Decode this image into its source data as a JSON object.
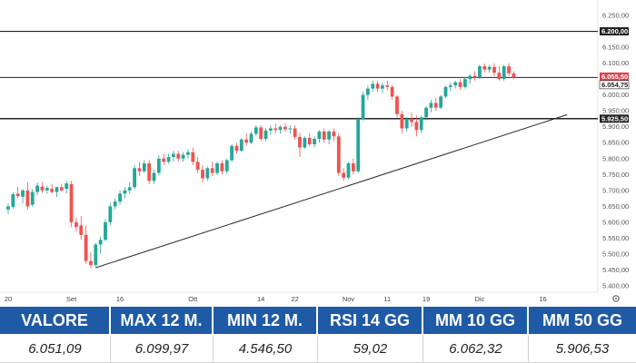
{
  "chart_data": {
    "type": "candlestick",
    "title": "",
    "xlabel": "",
    "ylabel": "",
    "ylim": [
      5380,
      6270
    ],
    "grid": false,
    "y_ticks": [
      "6.250,00",
      "6.200,00",
      "6.150,00",
      "6.100,00",
      "6.050,00",
      "6.000,00",
      "5.950,00",
      "5.900,00",
      "5.850,00",
      "5.800,00",
      "5.750,00",
      "5.700,00",
      "5.650,00",
      "5.600,00",
      "5.550,00",
      "5.500,00",
      "5.450,00",
      "5.400,00"
    ],
    "y_tick_values": [
      6250,
      6200,
      6150,
      6100,
      6050,
      6000,
      5950,
      5900,
      5850,
      5800,
      5750,
      5700,
      5650,
      5600,
      5550,
      5500,
      5450,
      5400
    ],
    "x_ticks": [
      {
        "label": "20",
        "index": 0
      },
      {
        "label": "Set",
        "index": 13
      },
      {
        "label": "16",
        "index": 23
      },
      {
        "label": "Ott",
        "index": 38
      },
      {
        "label": "14",
        "index": 52
      },
      {
        "label": "22",
        "index": 59
      },
      {
        "label": "Nov",
        "index": 70
      },
      {
        "label": "11",
        "index": 78
      },
      {
        "label": "19",
        "index": 86
      },
      {
        "label": "Dic",
        "index": 97
      },
      {
        "label": "16",
        "index": 110
      }
    ],
    "horizontal_levels": [
      {
        "value": 6200,
        "label": "6.200,00",
        "color": "#222222"
      },
      {
        "value": 6055,
        "label": "6.055,50",
        "color": "#222222"
      },
      {
        "value": 5925.5,
        "label": "5.925,50",
        "color": "#222222"
      }
    ],
    "last_price_tags": [
      {
        "label": "6.055,50",
        "color": "#e0414b"
      },
      {
        "label": "6.054,75",
        "color": "#ffffff"
      }
    ],
    "trendline": {
      "from": {
        "index": 18,
        "value": 5457
      },
      "to": {
        "index": 115,
        "value": 5938
      }
    },
    "candles": [
      {
        "o": 5640,
        "h": 5660,
        "l": 5625,
        "c": 5650
      },
      {
        "o": 5648,
        "h": 5695,
        "l": 5642,
        "c": 5688
      },
      {
        "o": 5690,
        "h": 5712,
        "l": 5675,
        "c": 5682
      },
      {
        "o": 5680,
        "h": 5705,
        "l": 5660,
        "c": 5700
      },
      {
        "o": 5700,
        "h": 5725,
        "l": 5640,
        "c": 5650
      },
      {
        "o": 5655,
        "h": 5705,
        "l": 5648,
        "c": 5695
      },
      {
        "o": 5695,
        "h": 5725,
        "l": 5685,
        "c": 5715
      },
      {
        "o": 5712,
        "h": 5725,
        "l": 5692,
        "c": 5700
      },
      {
        "o": 5700,
        "h": 5715,
        "l": 5690,
        "c": 5708
      },
      {
        "o": 5705,
        "h": 5720,
        "l": 5690,
        "c": 5695
      },
      {
        "o": 5695,
        "h": 5712,
        "l": 5680,
        "c": 5710
      },
      {
        "o": 5710,
        "h": 5720,
        "l": 5695,
        "c": 5700
      },
      {
        "o": 5705,
        "h": 5730,
        "l": 5690,
        "c": 5722
      },
      {
        "o": 5720,
        "h": 5730,
        "l": 5585,
        "c": 5600
      },
      {
        "o": 5600,
        "h": 5615,
        "l": 5570,
        "c": 5585
      },
      {
        "o": 5590,
        "h": 5620,
        "l": 5545,
        "c": 5560
      },
      {
        "o": 5560,
        "h": 5590,
        "l": 5470,
        "c": 5478
      },
      {
        "o": 5478,
        "h": 5505,
        "l": 5455,
        "c": 5465
      },
      {
        "o": 5465,
        "h": 5535,
        "l": 5460,
        "c": 5530
      },
      {
        "o": 5530,
        "h": 5555,
        "l": 5500,
        "c": 5545
      },
      {
        "o": 5545,
        "h": 5610,
        "l": 5540,
        "c": 5600
      },
      {
        "o": 5600,
        "h": 5660,
        "l": 5590,
        "c": 5650
      },
      {
        "o": 5650,
        "h": 5675,
        "l": 5640,
        "c": 5665
      },
      {
        "o": 5665,
        "h": 5700,
        "l": 5655,
        "c": 5690
      },
      {
        "o": 5690,
        "h": 5710,
        "l": 5675,
        "c": 5700
      },
      {
        "o": 5700,
        "h": 5725,
        "l": 5690,
        "c": 5710
      },
      {
        "o": 5710,
        "h": 5780,
        "l": 5705,
        "c": 5770
      },
      {
        "o": 5770,
        "h": 5790,
        "l": 5745,
        "c": 5760
      },
      {
        "o": 5760,
        "h": 5795,
        "l": 5755,
        "c": 5785
      },
      {
        "o": 5785,
        "h": 5795,
        "l": 5720,
        "c": 5730
      },
      {
        "o": 5730,
        "h": 5765,
        "l": 5720,
        "c": 5755
      },
      {
        "o": 5755,
        "h": 5810,
        "l": 5748,
        "c": 5800
      },
      {
        "o": 5800,
        "h": 5815,
        "l": 5780,
        "c": 5790
      },
      {
        "o": 5790,
        "h": 5815,
        "l": 5785,
        "c": 5805
      },
      {
        "o": 5805,
        "h": 5825,
        "l": 5790,
        "c": 5815
      },
      {
        "o": 5815,
        "h": 5825,
        "l": 5790,
        "c": 5800
      },
      {
        "o": 5800,
        "h": 5820,
        "l": 5790,
        "c": 5812
      },
      {
        "o": 5812,
        "h": 5830,
        "l": 5800,
        "c": 5820
      },
      {
        "o": 5820,
        "h": 5835,
        "l": 5780,
        "c": 5790
      },
      {
        "o": 5790,
        "h": 5805,
        "l": 5755,
        "c": 5765
      },
      {
        "o": 5765,
        "h": 5780,
        "l": 5725,
        "c": 5738
      },
      {
        "o": 5738,
        "h": 5775,
        "l": 5730,
        "c": 5770
      },
      {
        "o": 5770,
        "h": 5790,
        "l": 5745,
        "c": 5755
      },
      {
        "o": 5755,
        "h": 5790,
        "l": 5748,
        "c": 5785
      },
      {
        "o": 5785,
        "h": 5795,
        "l": 5750,
        "c": 5760
      },
      {
        "o": 5760,
        "h": 5800,
        "l": 5752,
        "c": 5795
      },
      {
        "o": 5795,
        "h": 5845,
        "l": 5790,
        "c": 5840
      },
      {
        "o": 5840,
        "h": 5850,
        "l": 5815,
        "c": 5825
      },
      {
        "o": 5825,
        "h": 5865,
        "l": 5820,
        "c": 5860
      },
      {
        "o": 5860,
        "h": 5880,
        "l": 5840,
        "c": 5850
      },
      {
        "o": 5850,
        "h": 5885,
        "l": 5845,
        "c": 5878
      },
      {
        "o": 5878,
        "h": 5905,
        "l": 5870,
        "c": 5898
      },
      {
        "o": 5898,
        "h": 5905,
        "l": 5855,
        "c": 5862
      },
      {
        "o": 5862,
        "h": 5895,
        "l": 5855,
        "c": 5888
      },
      {
        "o": 5888,
        "h": 5905,
        "l": 5875,
        "c": 5895
      },
      {
        "o": 5895,
        "h": 5910,
        "l": 5880,
        "c": 5890
      },
      {
        "o": 5890,
        "h": 5905,
        "l": 5878,
        "c": 5900
      },
      {
        "o": 5900,
        "h": 5912,
        "l": 5885,
        "c": 5892
      },
      {
        "o": 5892,
        "h": 5905,
        "l": 5878,
        "c": 5895
      },
      {
        "o": 5895,
        "h": 5905,
        "l": 5860,
        "c": 5868
      },
      {
        "o": 5868,
        "h": 5880,
        "l": 5805,
        "c": 5835
      },
      {
        "o": 5835,
        "h": 5870,
        "l": 5830,
        "c": 5865
      },
      {
        "o": 5865,
        "h": 5880,
        "l": 5838,
        "c": 5845
      },
      {
        "o": 5845,
        "h": 5870,
        "l": 5835,
        "c": 5862
      },
      {
        "o": 5862,
        "h": 5890,
        "l": 5850,
        "c": 5885
      },
      {
        "o": 5885,
        "h": 5895,
        "l": 5850,
        "c": 5860
      },
      {
        "o": 5860,
        "h": 5890,
        "l": 5845,
        "c": 5885
      },
      {
        "o": 5885,
        "h": 5895,
        "l": 5855,
        "c": 5870
      },
      {
        "o": 5870,
        "h": 5880,
        "l": 5745,
        "c": 5755
      },
      {
        "o": 5755,
        "h": 5770,
        "l": 5730,
        "c": 5740
      },
      {
        "o": 5740,
        "h": 5790,
        "l": 5735,
        "c": 5785
      },
      {
        "o": 5785,
        "h": 5800,
        "l": 5750,
        "c": 5760
      },
      {
        "o": 5760,
        "h": 5930,
        "l": 5755,
        "c": 5925
      },
      {
        "o": 5925,
        "h": 6010,
        "l": 5920,
        "c": 6000
      },
      {
        "o": 6000,
        "h": 6030,
        "l": 5985,
        "c": 6020
      },
      {
        "o": 6020,
        "h": 6045,
        "l": 6010,
        "c": 6035
      },
      {
        "o": 6035,
        "h": 6045,
        "l": 6010,
        "c": 6020
      },
      {
        "o": 6020,
        "h": 6040,
        "l": 6005,
        "c": 6030
      },
      {
        "o": 6030,
        "h": 6045,
        "l": 6015,
        "c": 6025
      },
      {
        "o": 6025,
        "h": 6030,
        "l": 5985,
        "c": 5995
      },
      {
        "o": 5995,
        "h": 6000,
        "l": 5930,
        "c": 5940
      },
      {
        "o": 5940,
        "h": 5950,
        "l": 5880,
        "c": 5895
      },
      {
        "o": 5895,
        "h": 5930,
        "l": 5885,
        "c": 5925
      },
      {
        "o": 5925,
        "h": 5945,
        "l": 5900,
        "c": 5915
      },
      {
        "o": 5915,
        "h": 5935,
        "l": 5870,
        "c": 5890
      },
      {
        "o": 5890,
        "h": 5935,
        "l": 5880,
        "c": 5930
      },
      {
        "o": 5930,
        "h": 5965,
        "l": 5920,
        "c": 5960
      },
      {
        "o": 5960,
        "h": 5985,
        "l": 5945,
        "c": 5975
      },
      {
        "o": 5975,
        "h": 5990,
        "l": 5950,
        "c": 5960
      },
      {
        "o": 5960,
        "h": 6000,
        "l": 5955,
        "c": 5995
      },
      {
        "o": 5995,
        "h": 6030,
        "l": 5990,
        "c": 6025
      },
      {
        "o": 6025,
        "h": 6040,
        "l": 6010,
        "c": 6030
      },
      {
        "o": 6030,
        "h": 6045,
        "l": 6020,
        "c": 6040
      },
      {
        "o": 6040,
        "h": 6050,
        "l": 6015,
        "c": 6025
      },
      {
        "o": 6025,
        "h": 6055,
        "l": 6020,
        "c": 6050
      },
      {
        "o": 6050,
        "h": 6065,
        "l": 6035,
        "c": 6060
      },
      {
        "o": 6060,
        "h": 6075,
        "l": 6045,
        "c": 6055
      },
      {
        "o": 6055,
        "h": 6095,
        "l": 6050,
        "c": 6090
      },
      {
        "o": 6090,
        "h": 6100,
        "l": 6070,
        "c": 6080
      },
      {
        "o": 6080,
        "h": 6095,
        "l": 6070,
        "c": 6088
      },
      {
        "o": 6088,
        "h": 6100,
        "l": 6060,
        "c": 6070
      },
      {
        "o": 6070,
        "h": 6090,
        "l": 6045,
        "c": 6050
      },
      {
        "o": 6050,
        "h": 6095,
        "l": 6045,
        "c": 6090
      },
      {
        "o": 6090,
        "h": 6100,
        "l": 6060,
        "c": 6068
      },
      {
        "o": 6068,
        "h": 6075,
        "l": 6050,
        "c": 6055
      }
    ],
    "colors": {
      "up": "#26a69a",
      "down": "#ef5350",
      "trendline": "#2b2b2b",
      "level": "#222222"
    }
  },
  "stats": {
    "headers": [
      "VALORE",
      "MAX 12 M.",
      "MIN 12 M.",
      "RSI 14 GG",
      "MM 10 GG",
      "MM 50 GG"
    ],
    "values": [
      "6.051,09",
      "6.099,97",
      "4.546,50",
      "59,02",
      "6.062,32",
      "5.906,53"
    ],
    "header_color": "#1f5aa6"
  },
  "icons": {
    "settings": "gear-icon"
  }
}
